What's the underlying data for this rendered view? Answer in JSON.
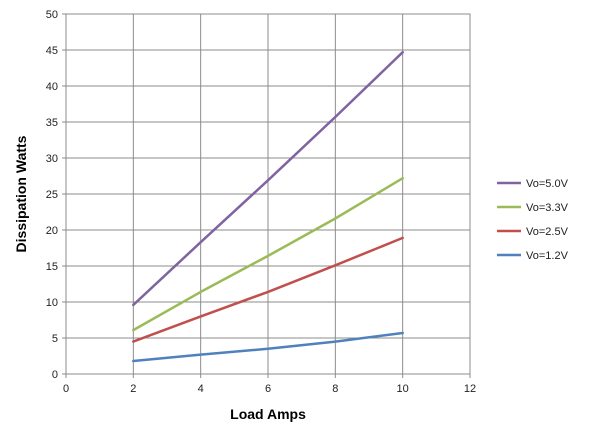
{
  "chart_data": {
    "type": "line",
    "xlabel": "Load Amps",
    "ylabel": "Dissipation Watts",
    "xlim": [
      0,
      12
    ],
    "ylim": [
      0,
      50
    ],
    "xticks": [
      0,
      2,
      4,
      6,
      8,
      10,
      12
    ],
    "yticks": [
      0,
      5,
      10,
      15,
      20,
      25,
      30,
      35,
      40,
      45,
      50
    ],
    "x": [
      2,
      4,
      6,
      8,
      10
    ],
    "grid": true,
    "legend_position": "right",
    "series": [
      {
        "name": "Vo=5.0V",
        "color": "#8064a2",
        "values": [
          9.6,
          18.3,
          26.9,
          35.7,
          44.7
        ]
      },
      {
        "name": "Vo=3.3V",
        "color": "#9bbb59",
        "values": [
          6.1,
          11.4,
          16.4,
          21.6,
          27.2
        ]
      },
      {
        "name": "Vo=2.5V",
        "color": "#c0504d",
        "values": [
          4.5,
          8.0,
          11.4,
          15.1,
          18.9
        ]
      },
      {
        "name": "Vo=1.2V",
        "color": "#4f81bd",
        "values": [
          1.8,
          2.7,
          3.5,
          4.5,
          5.7
        ]
      }
    ]
  }
}
